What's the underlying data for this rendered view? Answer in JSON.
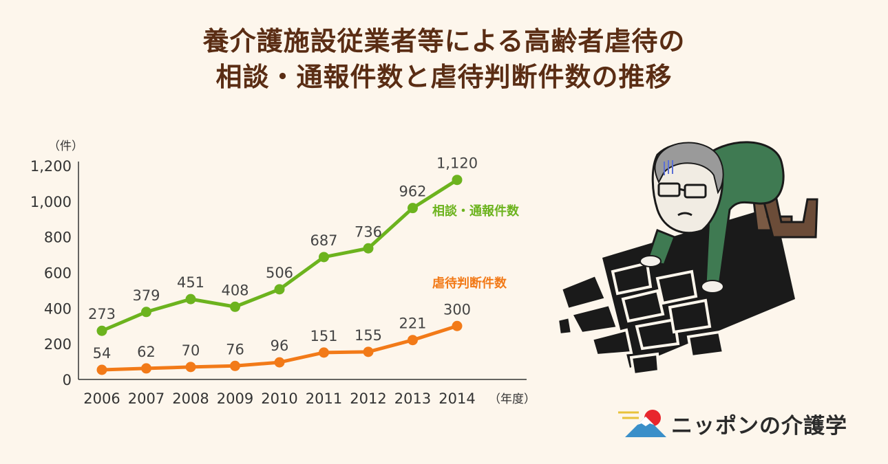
{
  "title": {
    "line1": "養介護施設従業者等による高齢者虐待の",
    "line2": "相談・通報件数と虐待判断件数の推移"
  },
  "chart_data": {
    "type": "line",
    "x": [
      "2006",
      "2007",
      "2008",
      "2009",
      "2010",
      "2011",
      "2012",
      "2013",
      "2014"
    ],
    "ylim": [
      0,
      1200
    ],
    "yticks": [
      "0",
      "200",
      "400",
      "600",
      "800",
      "1,000",
      "1,200"
    ],
    "ylabel": "（件）",
    "xlabel": "（年度）",
    "grid": false,
    "series": [
      {
        "name": "相談・通報件数",
        "color": "#6cb31e",
        "values": [
          273,
          379,
          451,
          408,
          506,
          687,
          736,
          962,
          1120
        ],
        "labels": [
          "273",
          "379",
          "451",
          "408",
          "506",
          "687",
          "736",
          "962",
          "1,120"
        ]
      },
      {
        "name": "虐待判断件数",
        "color": "#f27a18",
        "values": [
          54,
          62,
          70,
          76,
          96,
          151,
          155,
          221,
          300
        ],
        "labels": [
          "54",
          "62",
          "70",
          "76",
          "96",
          "151",
          "155",
          "221",
          "300"
        ]
      }
    ]
  },
  "logo": {
    "text": "ニッポンの介護学",
    "icon": "mount-fuji-sunrise-icon",
    "sun_color": "#e8262d",
    "mountain_color": "#3a8fc9"
  },
  "illustration": {
    "icon": "elderly-man-crawling-on-cracked-ground-icon"
  }
}
